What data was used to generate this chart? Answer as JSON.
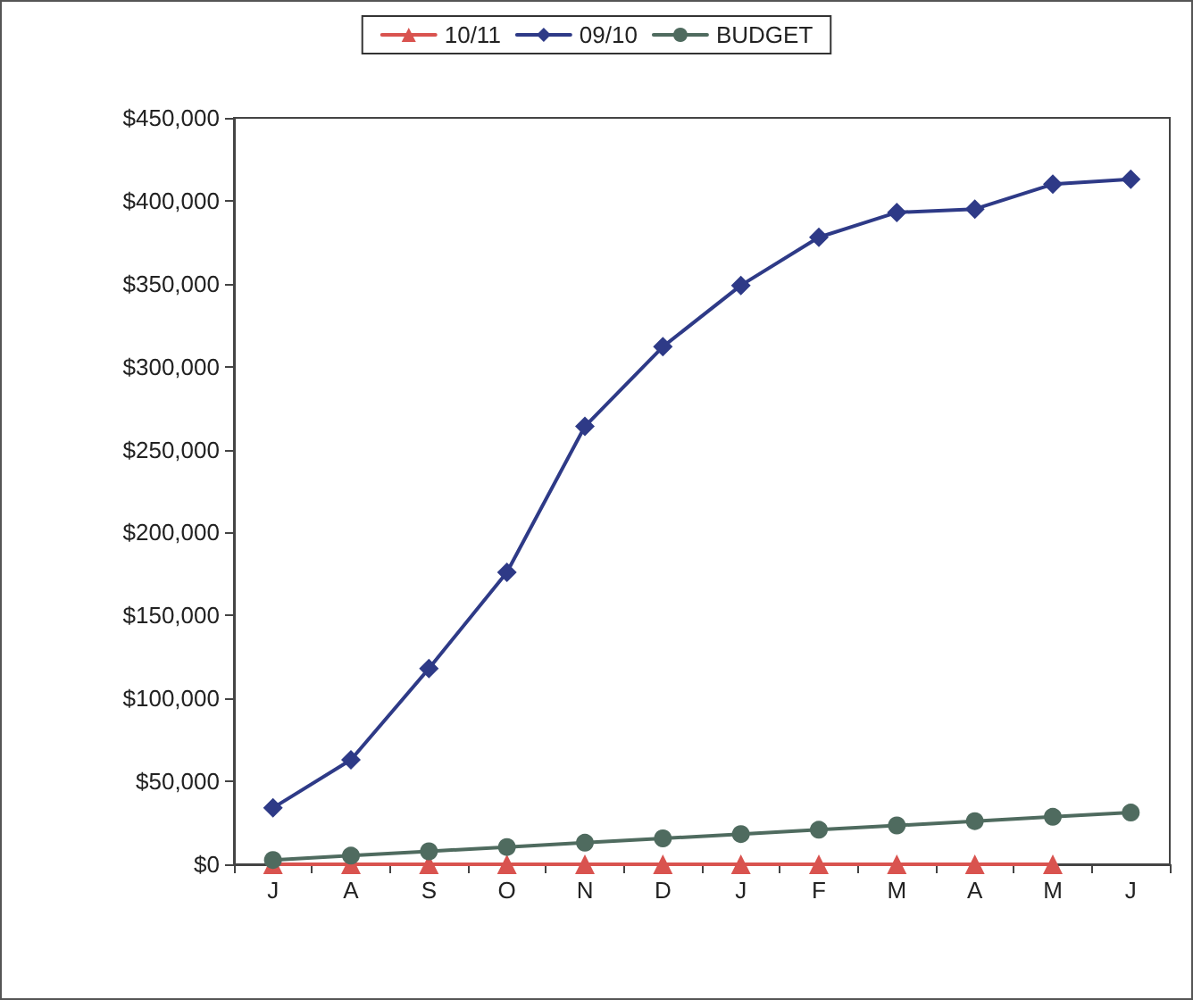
{
  "chart_data": {
    "type": "line",
    "categories": [
      "J",
      "A",
      "S",
      "O",
      "N",
      "D",
      "J",
      "F",
      "M",
      "A",
      "M",
      "J"
    ],
    "series": [
      {
        "name": "10/11",
        "color": "#d9534f",
        "marker": "triangle",
        "values": [
          0,
          0,
          0,
          0,
          0,
          0,
          0,
          0,
          0,
          0,
          0,
          null
        ]
      },
      {
        "name": "09/10",
        "color": "#2e3a87",
        "marker": "diamond",
        "values": [
          34000,
          63000,
          118000,
          176000,
          264000,
          312000,
          349000,
          378000,
          393000,
          395000,
          410000,
          413000
        ]
      },
      {
        "name": "BUDGET",
        "color": "#4f6b5f",
        "marker": "circle",
        "values": [
          2600,
          5200,
          7800,
          10400,
          13000,
          15600,
          18200,
          20800,
          23400,
          26000,
          28600,
          31200
        ]
      }
    ],
    "ylim": [
      0,
      450000
    ],
    "yticks": [
      {
        "value": 0,
        "label": "$0"
      },
      {
        "value": 50000,
        "label": "$50,000"
      },
      {
        "value": 100000,
        "label": "$100,000"
      },
      {
        "value": 150000,
        "label": "$150,000"
      },
      {
        "value": 200000,
        "label": "$200,000"
      },
      {
        "value": 250000,
        "label": "$250,000"
      },
      {
        "value": 300000,
        "label": "$300,000"
      },
      {
        "value": 350000,
        "label": "$350,000"
      },
      {
        "value": 400000,
        "label": "$400,000"
      },
      {
        "value": 450000,
        "label": "$450,000"
      }
    ],
    "grid": false,
    "legend": "top",
    "line_style": "solid"
  }
}
